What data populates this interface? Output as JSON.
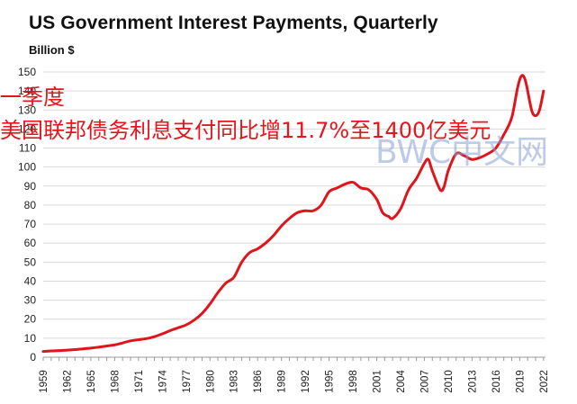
{
  "header": {
    "title": "US Government  Interest Payments,  Quarterly",
    "unit": "Billion $"
  },
  "overlay": {
    "line1": "一季度",
    "line2": "美国联邦债务利息支付同比增11.7%至1400亿美元",
    "watermark": "BWC中文网"
  },
  "colors": {
    "line": "#e0141b",
    "grid": "#d9d9d9",
    "overlay_text": "#e8141b",
    "watermark": "#8ea5d8"
  },
  "chart_data": {
    "type": "line",
    "title": "US Government  Interest Payments,  Quarterly",
    "ylabel": "Billion $",
    "xlim": [
      1959,
      2022.25
    ],
    "ylim": [
      0,
      150
    ],
    "yticks": [
      0,
      10,
      20,
      30,
      40,
      50,
      60,
      70,
      80,
      90,
      100,
      110,
      120,
      130,
      140,
      150
    ],
    "xticks": [
      "1959",
      "1962",
      "1965",
      "1968",
      "1971",
      "1974",
      "1977",
      "1980",
      "1983",
      "1986",
      "1989",
      "1992",
      "1995",
      "1998",
      "2001",
      "2004",
      "2007",
      "2010",
      "2013",
      "2016",
      "2019",
      "2022"
    ],
    "grid": true,
    "series": [
      {
        "x": [
          1959,
          1960,
          1961,
          1962,
          1963,
          1964,
          1965,
          1966,
          1967,
          1968,
          1969,
          1970,
          1971,
          1972,
          1973,
          1974,
          1975,
          1976,
          1977,
          1978,
          1979,
          1980,
          1981,
          1982,
          1983,
          1984,
          1985,
          1986,
          1987,
          1988,
          1989,
          1990,
          1991,
          1992,
          1993,
          1994,
          1995,
          1996,
          1997,
          1998,
          1999,
          2000,
          2001,
          2001.75,
          2002.5,
          2003,
          2004,
          2005,
          2006,
          2007,
          2007.5,
          2008,
          2009,
          2009.5,
          2010,
          2011,
          2012,
          2013,
          2014,
          2015,
          2016,
          2017,
          2018,
          2018.75,
          2019.25,
          2019.75,
          2020.5,
          2021,
          2021.5,
          2022
        ],
        "values": [
          3,
          3.3,
          3.5,
          3.7,
          4,
          4.4,
          4.8,
          5.3,
          5.9,
          6.5,
          7.5,
          8.6,
          9.2,
          9.8,
          10.8,
          12.3,
          14,
          15.5,
          17,
          19.5,
          23,
          28,
          34,
          39,
          42,
          50,
          55,
          57,
          60,
          64,
          69,
          73,
          76,
          77,
          77,
          80,
          87,
          89,
          91,
          92,
          89,
          88,
          83,
          76,
          74,
          73,
          78,
          88,
          94,
          102,
          104,
          98,
          88,
          90,
          98,
          107,
          106,
          104,
          105,
          107,
          110,
          117,
          126,
          142,
          148,
          145,
          130,
          127,
          130,
          140
        ]
      }
    ]
  }
}
